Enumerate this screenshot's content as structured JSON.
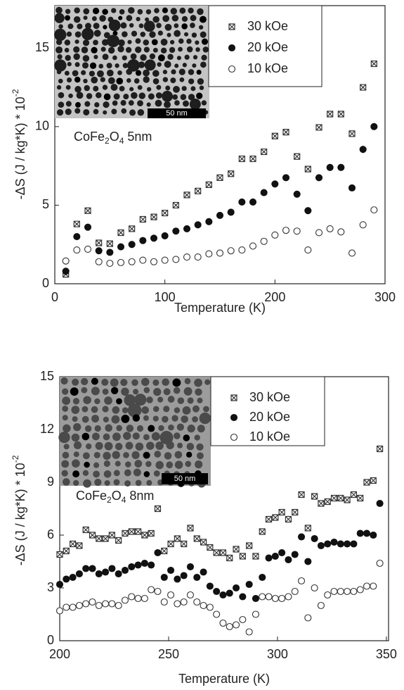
{
  "chart_data": [
    {
      "type": "scatter",
      "x_label": "Temperature (K)",
      "y_label_parts": [
        "-ΔS (J / kg*K) * 10",
        "-2"
      ],
      "annotation_parts": [
        "CoFe",
        "2",
        "O",
        "4",
        " 5nm"
      ],
      "inset_label": "50 nm",
      "x": [
        10,
        20,
        30,
        40,
        50,
        60,
        70,
        80,
        90,
        100,
        110,
        120,
        130,
        140,
        150,
        160,
        170,
        180,
        190,
        200,
        210,
        220,
        230,
        240,
        250,
        260,
        270,
        280,
        290
      ],
      "series": [
        {
          "name": "30 kOe",
          "marker": "square-x",
          "color": "#333333",
          "values": [
            0.6,
            3.8,
            4.65,
            2.6,
            2.55,
            3.25,
            3.5,
            4.1,
            4.25,
            4.5,
            5.0,
            5.65,
            5.9,
            6.3,
            6.75,
            7.0,
            7.95,
            7.95,
            8.4,
            9.4,
            9.65,
            8.1,
            7.3,
            9.95,
            10.8,
            10.8,
            9.55,
            12.5,
            14.0
          ]
        },
        {
          "name": "20 kOe",
          "marker": "filled-circle",
          "color": "#111111",
          "values": [
            0.8,
            3.0,
            3.6,
            2.1,
            2.0,
            2.35,
            2.5,
            2.75,
            2.9,
            3.05,
            3.35,
            3.5,
            3.75,
            3.95,
            4.35,
            4.55,
            5.2,
            5.2,
            5.8,
            6.35,
            6.75,
            5.7,
            4.65,
            6.75,
            7.4,
            7.4,
            6.1,
            8.55,
            10.0
          ]
        },
        {
          "name": "10 kOe",
          "marker": "open-circle",
          "color": "#333333",
          "values": [
            1.45,
            2.15,
            2.2,
            1.4,
            1.3,
            1.35,
            1.4,
            1.5,
            1.4,
            1.5,
            1.55,
            1.7,
            1.7,
            1.9,
            1.95,
            2.1,
            2.15,
            2.4,
            2.7,
            3.1,
            3.4,
            3.35,
            2.15,
            3.25,
            3.5,
            3.3,
            1.95,
            3.75,
            4.7
          ]
        }
      ],
      "xlim": [
        0,
        300
      ],
      "xticks": [
        0,
        100,
        200,
        300
      ],
      "ylim": [
        0,
        17.7
      ],
      "yticks": [
        0,
        5,
        10,
        15
      ],
      "legend": "upper-center"
    },
    {
      "type": "scatter",
      "x_label": "Temperature (K)",
      "y_label_parts": [
        "-ΔS (J / kg*K) * 10",
        "-2"
      ],
      "annotation_parts": [
        "CoFe",
        "2",
        "O",
        "4",
        " 8nm"
      ],
      "inset_label": "50 nm",
      "x": [
        200,
        203,
        206,
        209,
        212,
        215,
        218,
        221,
        224,
        227,
        230,
        233,
        236,
        239,
        242,
        245,
        248,
        251,
        254,
        257,
        260,
        263,
        266,
        269,
        272,
        275,
        278,
        281,
        284,
        287,
        290,
        293,
        296,
        299,
        302,
        305,
        308,
        311,
        314,
        317,
        320,
        323,
        326,
        329,
        332,
        335,
        338,
        341,
        344,
        347
      ],
      "series": [
        {
          "name": "30 kOe",
          "marker": "square-x",
          "color": "#333333",
          "values": [
            4.9,
            5.1,
            5.5,
            5.4,
            6.3,
            6.0,
            5.8,
            5.8,
            6.0,
            5.7,
            6.1,
            6.2,
            6.2,
            6.0,
            6.1,
            7.5,
            5.1,
            5.5,
            5.8,
            5.5,
            6.4,
            5.8,
            5.6,
            5.3,
            5.0,
            5.0,
            4.7,
            5.2,
            4.8,
            5.4,
            4.8,
            6.2,
            6.9,
            7.0,
            7.3,
            6.9,
            7.3,
            8.3,
            6.4,
            8.2,
            7.8,
            7.9,
            8.1,
            8.1,
            8.0,
            8.3,
            8.1,
            9.0,
            9.1,
            10.9
          ]
        },
        {
          "name": "20 kOe",
          "marker": "filled-circle",
          "color": "#111111",
          "values": [
            3.2,
            3.5,
            3.6,
            3.8,
            4.1,
            4.1,
            3.8,
            3.9,
            4.1,
            3.8,
            4.0,
            4.2,
            4.3,
            4.4,
            4.3,
            5.0,
            3.6,
            4.0,
            3.5,
            3.7,
            4.2,
            3.6,
            3.9,
            3.1,
            2.8,
            2.6,
            2.7,
            3.0,
            2.5,
            3.2,
            2.4,
            3.6,
            4.7,
            4.8,
            5.0,
            4.6,
            4.9,
            5.9,
            4.5,
            5.8,
            5.4,
            5.5,
            5.6,
            5.5,
            5.5,
            5.5,
            6.1,
            6.1,
            6.0,
            7.8
          ]
        },
        {
          "name": "10 kOe",
          "marker": "open-circle",
          "color": "#333333",
          "values": [
            1.7,
            1.9,
            1.9,
            2.0,
            2.1,
            2.2,
            2.0,
            2.1,
            2.1,
            2.0,
            2.3,
            2.5,
            2.4,
            2.4,
            2.9,
            2.8,
            2.2,
            2.6,
            2.1,
            2.2,
            2.6,
            2.2,
            2.0,
            1.9,
            1.5,
            1.0,
            0.8,
            0.9,
            1.2,
            0.5,
            1.5,
            2.5,
            2.5,
            2.4,
            2.4,
            2.5,
            2.8,
            3.4,
            1.3,
            3.0,
            2.0,
            2.6,
            2.8,
            2.8,
            2.8,
            2.8,
            2.9,
            3.1,
            3.1,
            4.4
          ]
        }
      ],
      "xlim": [
        200,
        351
      ],
      "xticks": [
        200,
        250,
        300,
        350
      ],
      "ylim": [
        0,
        15
      ],
      "yticks": [
        0,
        3,
        6,
        9,
        12,
        15
      ],
      "legend": "upper-center"
    }
  ]
}
